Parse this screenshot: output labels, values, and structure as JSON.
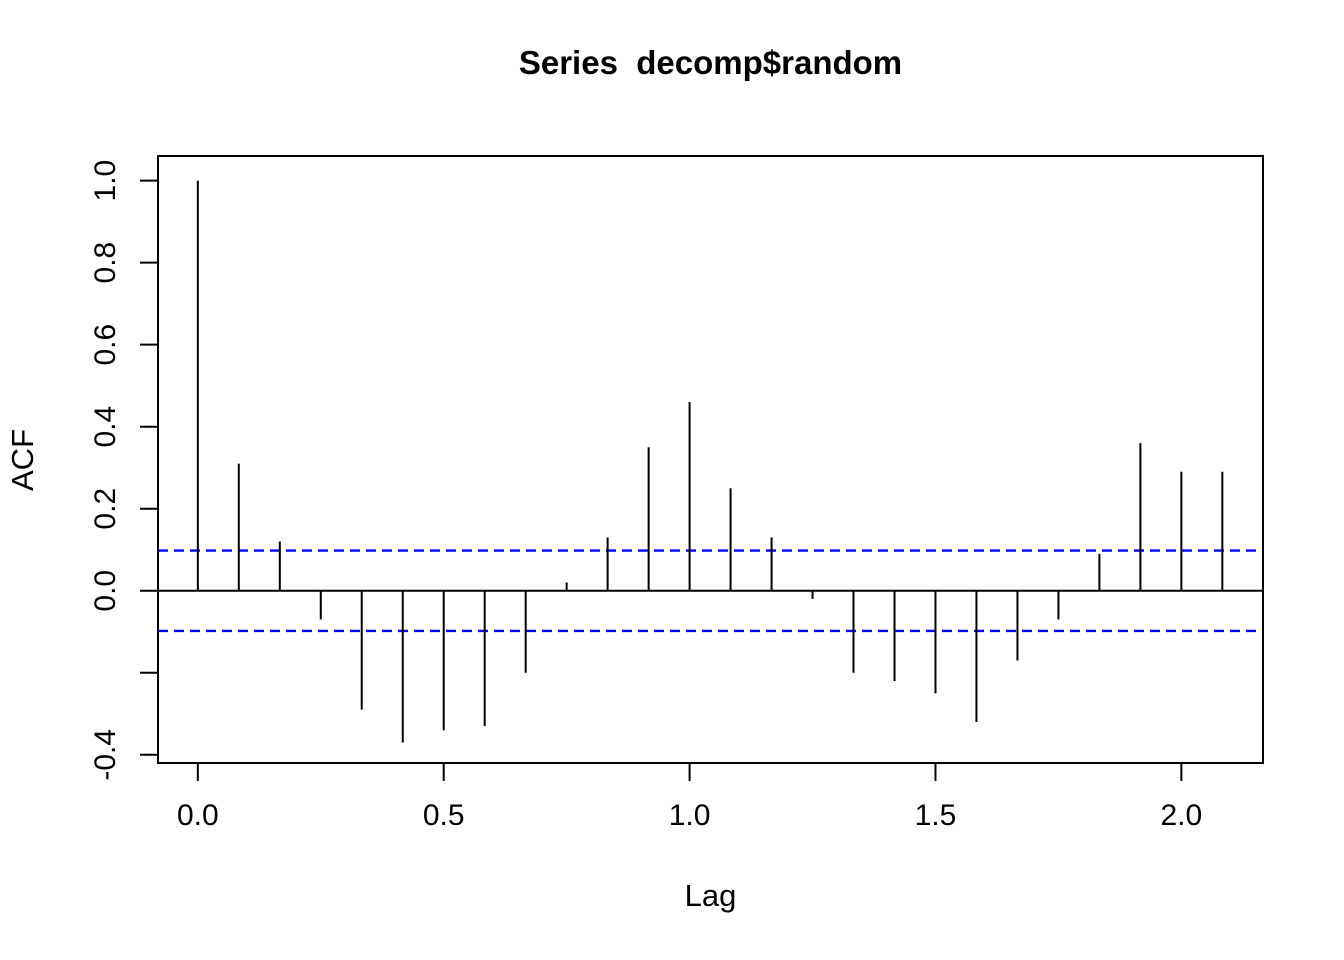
{
  "chart_title": "Series  decomp$random",
  "chart_data": {
    "type": "bar",
    "subtype": "acf-stem-plot",
    "title": "Series  decomp$random",
    "xlabel": "Lag",
    "ylabel": "ACF",
    "x": [
      0,
      0.0833,
      0.1667,
      0.25,
      0.3333,
      0.4167,
      0.5,
      0.5833,
      0.6667,
      0.75,
      0.8333,
      0.9167,
      1.0,
      1.0833,
      1.1667,
      1.25,
      1.3333,
      1.4167,
      1.5,
      1.5833,
      1.6667,
      1.75,
      1.8333,
      1.9167,
      2.0,
      2.0833
    ],
    "values": [
      1.0,
      0.31,
      0.12,
      -0.07,
      -0.29,
      -0.37,
      -0.34,
      -0.33,
      -0.2,
      0.02,
      0.13,
      0.35,
      0.46,
      0.25,
      0.13,
      -0.02,
      -0.2,
      -0.22,
      -0.25,
      -0.32,
      -0.17,
      -0.07,
      0.09,
      0.36,
      0.29,
      0.29
    ],
    "confidence_bound": 0.098,
    "zero_line": true,
    "grid": false,
    "xlim": [
      -0.081,
      2.166
    ],
    "ylim": [
      -0.42,
      1.06
    ],
    "x_ticks": [
      {
        "v": 0.0,
        "label": "0.0"
      },
      {
        "v": 0.5,
        "label": "0.5"
      },
      {
        "v": 1.0,
        "label": "1.0"
      },
      {
        "v": 1.5,
        "label": "1.5"
      },
      {
        "v": 2.0,
        "label": "2.0"
      }
    ],
    "y_ticks": [
      {
        "v": 1.0,
        "label": "1.0"
      },
      {
        "v": 0.8,
        "label": "0.8"
      },
      {
        "v": 0.6,
        "label": "0.6"
      },
      {
        "v": 0.4,
        "label": "0.4"
      },
      {
        "v": 0.2,
        "label": "0.2"
      },
      {
        "v": 0.0,
        "label": "0.0"
      },
      {
        "v": -0.2,
        "label": ""
      },
      {
        "v": -0.4,
        "label": "-0.4"
      }
    ],
    "colors": {
      "spike": "#000000",
      "confidence_line": "#0000FF",
      "axis": "#000000",
      "background": "#FFFFFF"
    }
  }
}
